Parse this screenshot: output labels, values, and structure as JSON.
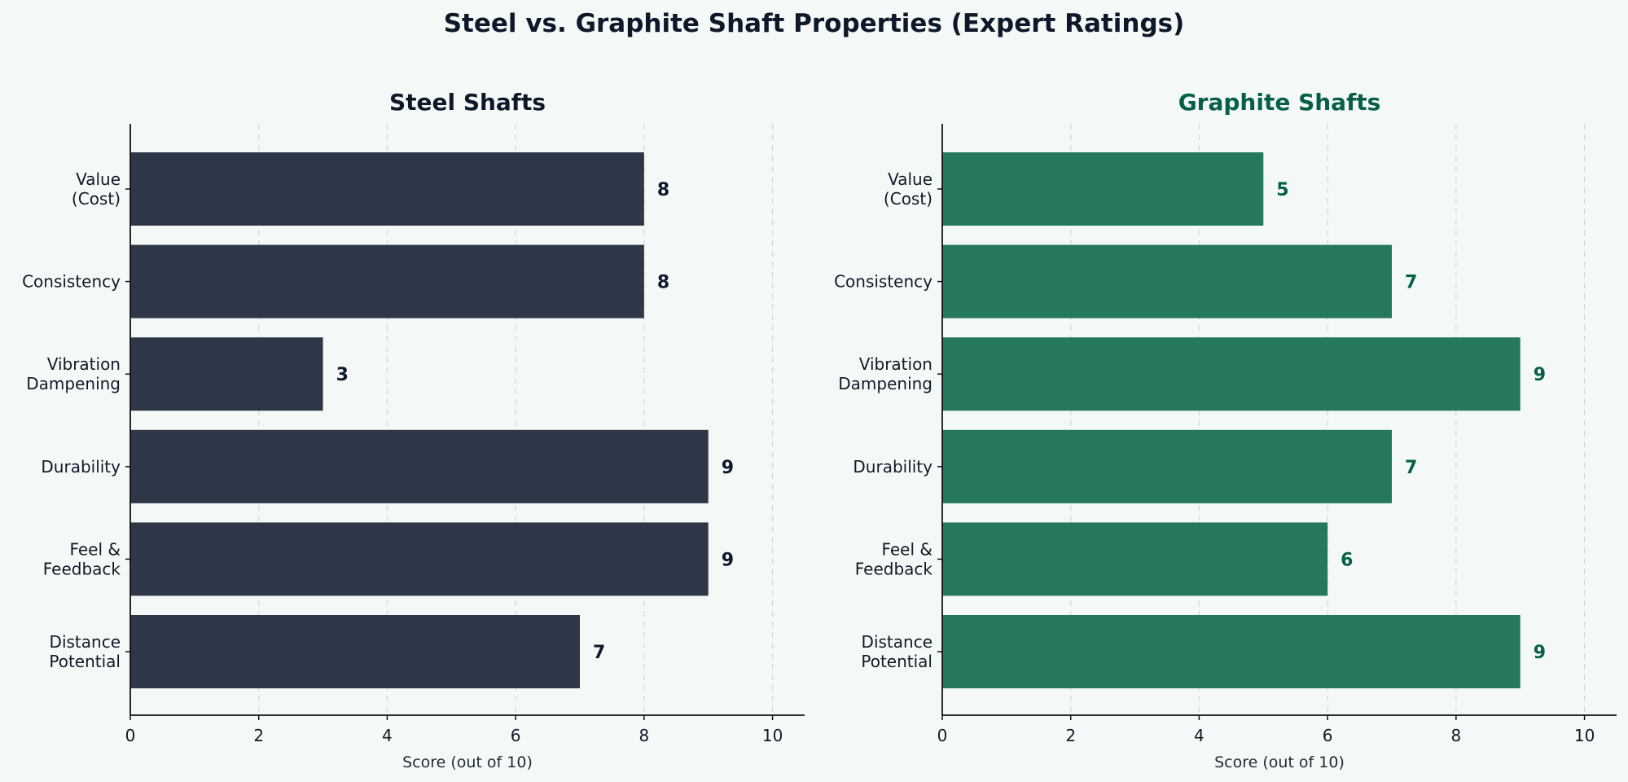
{
  "figure": {
    "title": "Steel vs. Graphite Shaft Properties (Expert Ratings)",
    "background": "#f4f9f8"
  },
  "chart_data": [
    {
      "type": "bar",
      "orientation": "horizontal",
      "title": "Steel Shafts",
      "title_color": "#0f172a",
      "bar_color": "#2d3748",
      "label_color": "#0f172a",
      "categories": [
        "Value\n(Cost)",
        "Consistency",
        "Vibration\nDampening",
        "Durability",
        "Feel &\nFeedback",
        "Distance\nPotential"
      ],
      "values": [
        8,
        8,
        3,
        9,
        9,
        7
      ],
      "xlabel": "Score (out of 10)",
      "ylabel": "",
      "xlim": [
        0,
        10.5
      ],
      "xticks": [
        0,
        2,
        4,
        6,
        8,
        10
      ],
      "grid": "x-dashed"
    },
    {
      "type": "bar",
      "orientation": "horizontal",
      "title": "Graphite Shafts",
      "title_color": "#065f46",
      "bar_color": "#26785b",
      "label_color": "#065f46",
      "categories": [
        "Value\n(Cost)",
        "Consistency",
        "Vibration\nDampening",
        "Durability",
        "Feel &\nFeedback",
        "Distance\nPotential"
      ],
      "values": [
        5,
        7,
        9,
        7,
        6,
        9
      ],
      "xlabel": "Score (out of 10)",
      "ylabel": "",
      "xlim": [
        0,
        10.5
      ],
      "xticks": [
        0,
        2,
        4,
        6,
        8,
        10
      ],
      "grid": "x-dashed"
    }
  ]
}
